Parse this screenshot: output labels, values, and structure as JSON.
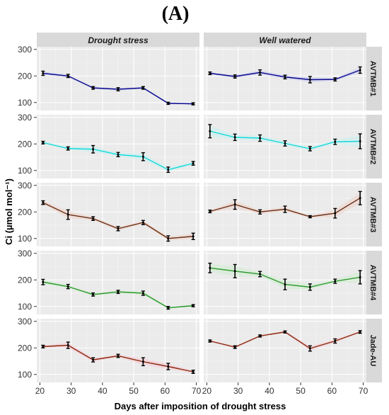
{
  "figure_label": "(A)",
  "chart_data": {
    "type": "line",
    "facet_columns": [
      "Drought stress",
      "Well watered"
    ],
    "facet_rows": [
      "AVTMB#1",
      "AVTMB#2",
      "AVTMB#3",
      "AVTMB#4",
      "Jade-AU"
    ],
    "xlabel": "Days after imposition of drought stress",
    "ylabel": "Ci (µmol mol⁻¹)",
    "x": [
      21,
      29,
      37,
      45,
      53,
      61,
      69
    ],
    "xlim": [
      19,
      71
    ],
    "ylim": [
      70,
      310
    ],
    "x_ticks": [
      20,
      30,
      40,
      50,
      60,
      70
    ],
    "y_ticks": [
      100,
      200,
      300
    ],
    "grid": true,
    "series": [
      {
        "row": "AVTMB#1",
        "color": "#0a0a8c",
        "band_color": "#c8c8f0",
        "drought": {
          "values": [
            210,
            200,
            155,
            150,
            155,
            97,
            95
          ],
          "err": [
            8,
            6,
            5,
            6,
            5,
            4,
            4
          ]
        },
        "well_watered": {
          "values": [
            210,
            198,
            213,
            196,
            186,
            187,
            222
          ],
          "err": [
            5,
            6,
            10,
            7,
            12,
            6,
            12
          ]
        }
      },
      {
        "row": "AVTMB#2",
        "color": "#17d8d8",
        "band_color": "#c8f0f0",
        "drought": {
          "values": [
            205,
            183,
            180,
            160,
            152,
            103,
            127
          ],
          "err": [
            5,
            6,
            14,
            8,
            15,
            10,
            7
          ]
        },
        "well_watered": {
          "values": [
            248,
            225,
            222,
            202,
            182,
            208,
            210
          ],
          "err": [
            25,
            12,
            12,
            10,
            8,
            10,
            28
          ]
        }
      },
      {
        "row": "AVTMB#3",
        "color": "#6b2e14",
        "band_color": "#ecd2c8",
        "drought": {
          "values": [
            235,
            190,
            175,
            137,
            160,
            100,
            108
          ],
          "err": [
            7,
            18,
            7,
            8,
            8,
            10,
            12
          ]
        },
        "well_watered": {
          "values": [
            202,
            228,
            200,
            210,
            182,
            195,
            252
          ],
          "err": [
            5,
            18,
            8,
            12,
            4,
            18,
            25
          ]
        }
      },
      {
        "row": "AVTMB#4",
        "color": "#2e9a2e",
        "band_color": "#cfeccf",
        "drought": {
          "values": [
            192,
            175,
            145,
            155,
            150,
            95,
            103
          ],
          "err": [
            10,
            8,
            6,
            6,
            8,
            5,
            4
          ]
        },
        "well_watered": {
          "values": [
            245,
            233,
            222,
            183,
            173,
            195,
            210
          ],
          "err": [
            18,
            25,
            10,
            20,
            12,
            8,
            25
          ]
        }
      },
      {
        "row": "Jade-AU",
        "color": "#8a2a0e",
        "band_color": "#f6c9d4",
        "drought": {
          "values": [
            205,
            210,
            155,
            170,
            148,
            130,
            110
          ],
          "err": [
            5,
            12,
            8,
            6,
            15,
            12,
            6
          ]
        },
        "well_watered": {
          "values": [
            226,
            203,
            245,
            260,
            198,
            226,
            260
          ],
          "err": [
            4,
            5,
            4,
            4,
            10,
            8,
            5
          ]
        }
      }
    ]
  }
}
